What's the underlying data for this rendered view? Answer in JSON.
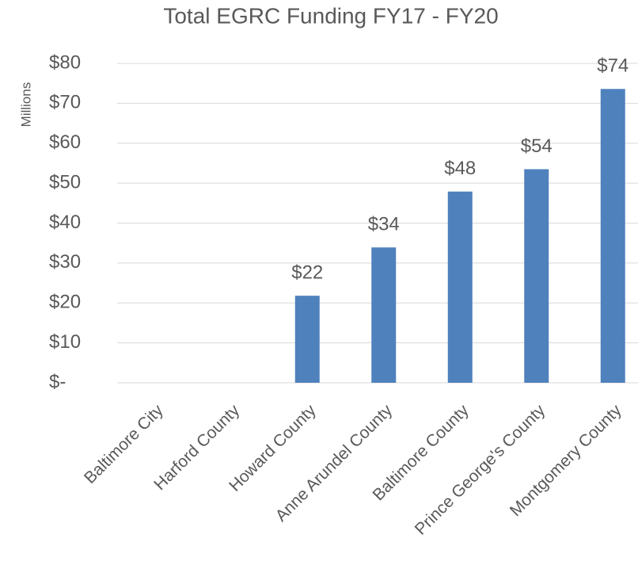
{
  "chart_data": {
    "type": "bar",
    "title": "Total EGRC Funding FY17 - FY20",
    "y_label": "Millions",
    "categories": [
      "Baltimore City",
      "Harford County",
      "Howard County",
      "Anne Arundel County",
      "Baltimore County",
      "Prince George's County",
      "Montgomery County"
    ],
    "values": [
      null,
      null,
      21.8,
      33.9,
      47.9,
      53.5,
      73.6
    ],
    "value_labels": [
      null,
      null,
      "$22",
      "$34",
      "$48",
      "$54",
      "$74"
    ],
    "color": "#4f81bd",
    "ylim": [
      0,
      80
    ],
    "yticks": [
      {
        "value": 0,
        "label": "$-"
      },
      {
        "value": 10,
        "label": "$10"
      },
      {
        "value": 20,
        "label": "$20"
      },
      {
        "value": 30,
        "label": "$30"
      },
      {
        "value": 40,
        "label": "$40"
      },
      {
        "value": 50,
        "label": "$50"
      },
      {
        "value": 60,
        "label": "$60"
      },
      {
        "value": 70,
        "label": "$70"
      },
      {
        "value": 80,
        "label": "$80"
      }
    ],
    "grid": true
  }
}
